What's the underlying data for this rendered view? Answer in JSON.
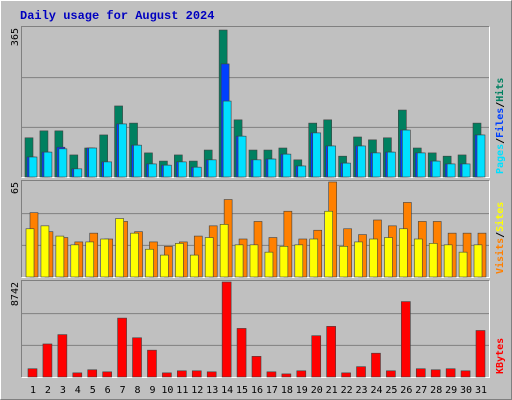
{
  "chart_data": [
    {
      "type": "bar",
      "title": "Daily usage for August 2024",
      "ylim": [
        0,
        365
      ],
      "yticks": [
        365
      ],
      "grid_divisions": 3,
      "legend_separator": "/",
      "series": [
        {
          "name": "Hits",
          "color": "#008060",
          "values": [
            96,
            113,
            113,
            54,
            71,
            103,
            174,
            132,
            59,
            39,
            54,
            39,
            66,
            360,
            140,
            66,
            66,
            71,
            42,
            132,
            140,
            51,
            98,
            91,
            96,
            164,
            71,
            59,
            51,
            54,
            132
          ]
        },
        {
          "name": "Files",
          "color": "#0040ff",
          "values": [
            49,
            61,
            73,
            20,
            71,
            37,
            130,
            78,
            32,
            29,
            37,
            24,
            42,
            277,
            100,
            42,
            44,
            56,
            27,
            108,
            76,
            34,
            76,
            59,
            61,
            115,
            59,
            39,
            32,
            32,
            103
          ]
        },
        {
          "name": "Pages",
          "color": "#00e0ff",
          "values": [
            49,
            61,
            69,
            20,
            71,
            37,
            130,
            78,
            32,
            29,
            37,
            24,
            42,
            186,
            100,
            42,
            44,
            56,
            27,
            108,
            76,
            34,
            76,
            59,
            61,
            115,
            59,
            39,
            32,
            32,
            103
          ]
        }
      ]
    },
    {
      "type": "bar",
      "ylim": [
        0,
        65
      ],
      "yticks": [
        65
      ],
      "grid_divisions": 3,
      "legend_separator": "/",
      "series": [
        {
          "name": "Visits",
          "color": "#ff8000",
          "values": [
            44,
            31,
            27,
            24,
            30,
            26,
            38,
            31,
            24,
            21,
            24,
            28,
            35,
            53,
            26,
            38,
            27,
            45,
            26,
            32,
            65,
            33,
            29,
            39,
            35,
            51,
            38,
            38,
            30,
            30,
            30
          ]
        },
        {
          "name": "Sites",
          "color": "#ffff00",
          "values": [
            33,
            35,
            28,
            22,
            24,
            26,
            40,
            30,
            19,
            15,
            23,
            15,
            27,
            36,
            22,
            22,
            17,
            21,
            22,
            26,
            45,
            21,
            24,
            26,
            27,
            33,
            26,
            23,
            22,
            17,
            22
          ]
        }
      ]
    },
    {
      "type": "bar",
      "ylim": [
        0,
        8742
      ],
      "yticks": [
        8742
      ],
      "grid_divisions": 3,
      "categories": [
        "1",
        "2",
        "3",
        "4",
        "5",
        "6",
        "7",
        "8",
        "9",
        "10",
        "11",
        "12",
        "13",
        "14",
        "15",
        "16",
        "17",
        "18",
        "19",
        "20",
        "21",
        "22",
        "23",
        "24",
        "25",
        "26",
        "27",
        "28",
        "29",
        "30",
        "31"
      ],
      "category_colors": [
        "#000000",
        "#000000",
        "#008060",
        "#008060",
        "#000000",
        "#000000",
        "#000000",
        "#000000",
        "#000000",
        "#008060",
        "#008060",
        "#000000",
        "#000000",
        "#000000",
        "#000000",
        "#000000",
        "#008060",
        "#008060",
        "#000000",
        "#000000",
        "#000000",
        "#000000",
        "#000000",
        "#008060",
        "#008060",
        "#000000",
        "#000000",
        "#000000",
        "#000000",
        "#000000",
        "#008060"
      ],
      "series": [
        {
          "name": "KBytes",
          "color": "#ff0000",
          "values": [
            760,
            3040,
            3900,
            380,
            665,
            475,
            5420,
            3610,
            2470,
            380,
            570,
            570,
            475,
            8742,
            4470,
            1900,
            475,
            285,
            570,
            3800,
            4660,
            380,
            950,
            2190,
            570,
            6940,
            760,
            665,
            760,
            570,
            4280
          ]
        }
      ]
    }
  ]
}
